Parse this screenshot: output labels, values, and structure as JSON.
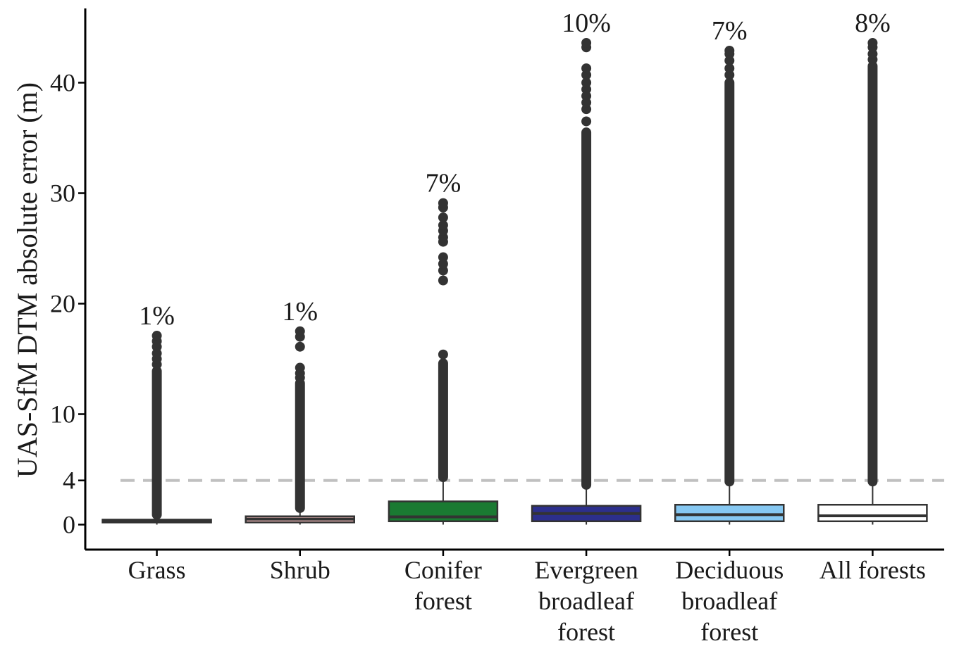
{
  "chart_data": {
    "type": "box",
    "title": "",
    "xlabel": "",
    "ylabel": "UAS-SfM DTM absolute error (m)",
    "ylim": [
      -2.2,
      46.5
    ],
    "yticks": [
      0,
      4,
      10,
      20,
      30,
      40
    ],
    "reference_line": {
      "value": 4,
      "style": "dashed",
      "color": "#c0c0c0"
    },
    "categories": [
      {
        "name": "Grass",
        "lines": [
          "Grass"
        ],
        "color": "#ffffff",
        "q1": 0.2,
        "median": 0.3,
        "q3": 0.45,
        "whisker_low": 0.0,
        "whisker_high": 0.9,
        "outlier_min": 0.9,
        "outlier_max": 13.9,
        "sparse_outliers": [
          14.5,
          15.0,
          15.5,
          16.1,
          16.6,
          17.1
        ],
        "pct": "1%"
      },
      {
        "name": "Shrub",
        "lines": [
          "Shrub"
        ],
        "color": "#e8b4b4",
        "q1": 0.2,
        "median": 0.5,
        "q3": 0.75,
        "whisker_low": 0.0,
        "whisker_high": 1.5,
        "outlier_min": 1.5,
        "outlier_max": 12.8,
        "sparse_outliers": [
          13.3,
          13.7,
          14.2,
          16.1,
          17.0,
          17.5
        ],
        "pct": "1%"
      },
      {
        "name": "Conifer forest",
        "lines": [
          "Conifer",
          "forest"
        ],
        "color": "#1a7a32",
        "q1": 0.3,
        "median": 0.7,
        "q3": 2.1,
        "whisker_low": 0.0,
        "whisker_high": 4.3,
        "outlier_min": 4.3,
        "outlier_max": 14.6,
        "sparse_outliers": [
          15.4,
          22.1,
          23.0,
          23.6,
          24.2,
          25.6,
          26.0,
          26.6,
          27.1,
          27.8,
          28.7,
          29.1
        ],
        "pct": "7%"
      },
      {
        "name": "Evergreen broadleaf forest",
        "lines": [
          "Evergreen",
          "broadleaf",
          "forest"
        ],
        "color": "#2c2f8c",
        "q1": 0.3,
        "median": 1.0,
        "q3": 1.7,
        "whisker_low": 0.0,
        "whisker_high": 3.6,
        "outlier_min": 3.6,
        "outlier_max": 35.5,
        "sparse_outliers": [
          36.5,
          37.6,
          38.2,
          38.8,
          39.4,
          40.0,
          40.7,
          41.3,
          43.2,
          43.6
        ],
        "pct": "10%"
      },
      {
        "name": "Deciduous broadleaf forest",
        "lines": [
          "Deciduous",
          "broadleaf",
          "forest"
        ],
        "color": "#86c8f2",
        "q1": 0.3,
        "median": 0.9,
        "q3": 1.8,
        "whisker_low": 0.0,
        "whisker_high": 3.9,
        "outlier_min": 3.9,
        "outlier_max": 40.0,
        "sparse_outliers": [
          40.7,
          41.3,
          42.0,
          42.6,
          42.9
        ],
        "pct": "7%"
      },
      {
        "name": "All forests",
        "lines": [
          "All forests"
        ],
        "color": "#ffffff",
        "q1": 0.3,
        "median": 0.8,
        "q3": 1.8,
        "whisker_low": 0.0,
        "whisker_high": 3.9,
        "outlier_min": 3.9,
        "outlier_max": 41.5,
        "sparse_outliers": [
          42.1,
          42.6,
          43.2,
          43.6
        ],
        "pct": "8%"
      }
    ]
  }
}
